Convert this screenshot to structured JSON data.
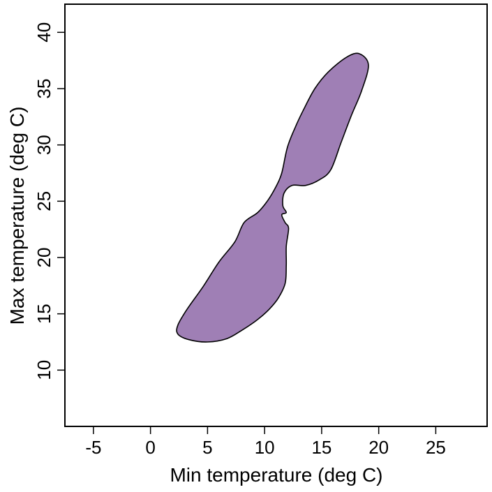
{
  "chart_data": {
    "type": "area",
    "xlabel": "Min temperature (deg C)",
    "ylabel": "Max temperature (deg C)",
    "xlim": [
      -7.5,
      29.5
    ],
    "ylim": [
      5,
      42.5
    ],
    "x_ticks": [
      -5,
      0,
      5,
      10,
      15,
      20,
      25
    ],
    "y_ticks": [
      10,
      15,
      20,
      25,
      30,
      35,
      40
    ],
    "grid": false,
    "region_fill": "#9f7fb5",
    "region_stroke": "#000000",
    "region_outline": [
      [
        2.4,
        14.0
      ],
      [
        3.2,
        15.4
      ],
      [
        4.6,
        17.4
      ],
      [
        6.0,
        19.6
      ],
      [
        7.4,
        21.4
      ],
      [
        8.2,
        23.1
      ],
      [
        9.4,
        24.0
      ],
      [
        10.3,
        25.1
      ],
      [
        11.0,
        26.3
      ],
      [
        11.5,
        27.5
      ],
      [
        12.0,
        29.8
      ],
      [
        12.7,
        31.6
      ],
      [
        13.4,
        33.1
      ],
      [
        14.4,
        35.0
      ],
      [
        15.6,
        36.5
      ],
      [
        17.2,
        37.8
      ],
      [
        18.3,
        38.1
      ],
      [
        19.1,
        37.1
      ],
      [
        18.5,
        34.8
      ],
      [
        17.6,
        32.6
      ],
      [
        16.7,
        30.2
      ],
      [
        15.8,
        27.8
      ],
      [
        14.8,
        26.9
      ],
      [
        13.6,
        26.4
      ],
      [
        12.4,
        26.4
      ],
      [
        11.7,
        25.7
      ],
      [
        11.6,
        24.6
      ],
      [
        11.9,
        24.0
      ],
      [
        11.5,
        23.8
      ],
      [
        11.8,
        23.1
      ],
      [
        12.1,
        22.6
      ],
      [
        11.9,
        21.0
      ],
      [
        11.9,
        19.3
      ],
      [
        11.8,
        17.7
      ],
      [
        11.2,
        16.4
      ],
      [
        10.4,
        15.4
      ],
      [
        9.4,
        14.5
      ],
      [
        8.1,
        13.6
      ],
      [
        6.7,
        12.8
      ],
      [
        5.0,
        12.5
      ],
      [
        3.4,
        12.7
      ],
      [
        2.4,
        13.2
      ]
    ]
  }
}
